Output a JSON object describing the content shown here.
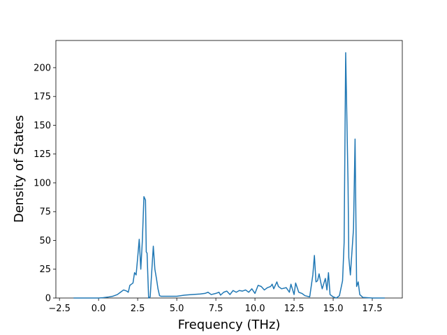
{
  "chart_data": {
    "type": "line",
    "xlabel": "Frequency (THz)",
    "ylabel": "Density of States",
    "color": "#1f77b4",
    "x": [
      -1.6,
      -1.0,
      -0.5,
      0,
      0.3,
      0.6,
      0.9,
      1.2,
      1.4,
      1.6,
      1.8,
      1.9,
      2.0,
      2.1,
      2.2,
      2.3,
      2.4,
      2.5,
      2.6,
      2.7,
      2.8,
      2.9,
      3.0,
      3.05,
      3.1,
      3.2,
      3.3,
      3.5,
      3.6,
      3.7,
      3.8,
      3.9,
      4.0,
      4.5,
      5.0,
      5.5,
      6.0,
      6.5,
      6.8,
      7.0,
      7.2,
      7.5,
      7.7,
      7.8,
      8.0,
      8.2,
      8.4,
      8.6,
      8.8,
      9.0,
      9.2,
      9.4,
      9.6,
      9.8,
      10.0,
      10.2,
      10.4,
      10.6,
      10.8,
      11.0,
      11.1,
      11.2,
      11.4,
      11.5,
      11.7,
      12.0,
      12.2,
      12.3,
      12.5,
      12.6,
      12.8,
      13.0,
      13.2,
      13.5,
      13.7,
      13.8,
      13.9,
      14.0,
      14.1,
      14.2,
      14.3,
      14.5,
      14.6,
      14.7,
      14.8,
      15.0,
      15.2,
      15.4,
      15.6,
      15.7,
      15.8,
      15.95,
      16.0,
      16.1,
      16.3,
      16.4,
      16.5,
      16.6,
      16.7,
      16.9,
      17.5,
      18.3
    ],
    "values": [
      0,
      0,
      0,
      0,
      0.3,
      0.8,
      1.5,
      3,
      5,
      7,
      6,
      5,
      11,
      12,
      13,
      22,
      20,
      35,
      51,
      25,
      50,
      88,
      85,
      40,
      39,
      0,
      1,
      45,
      25,
      17,
      8,
      2,
      1.5,
      1.5,
      1.5,
      2.5,
      3,
      3.5,
      4,
      5,
      3,
      4,
      5,
      2.5,
      5,
      6,
      3,
      6.5,
      5,
      6.5,
      6,
      7,
      5,
      8,
      4,
      11,
      10,
      7,
      9,
      10,
      12,
      8,
      14,
      10,
      8,
      9,
      5,
      12,
      3,
      13,
      5,
      4,
      2,
      1,
      20,
      37,
      14,
      15,
      21,
      14,
      8,
      17,
      7,
      22,
      3,
      1,
      0,
      2,
      15,
      48,
      213,
      100,
      35,
      20,
      60,
      138,
      10,
      14,
      3,
      0.5,
      0,
      0
    ],
    "xlim": [
      -2.73,
      19.42
    ],
    "ylim": [
      0,
      223.6
    ],
    "xticks": [
      {
        "value": -2.5,
        "label": "−2.5"
      },
      {
        "value": 0,
        "label": "0.0"
      },
      {
        "value": 2.5,
        "label": "2.5"
      },
      {
        "value": 5,
        "label": "5.0"
      },
      {
        "value": 7.5,
        "label": "7.5"
      },
      {
        "value": 10,
        "label": "10.0"
      },
      {
        "value": 12.5,
        "label": "12.5"
      },
      {
        "value": 15,
        "label": "15.0"
      },
      {
        "value": 17.5,
        "label": "17.5"
      }
    ],
    "yticks": [
      0,
      25,
      50,
      75,
      100,
      125,
      150,
      175,
      200
    ]
  }
}
